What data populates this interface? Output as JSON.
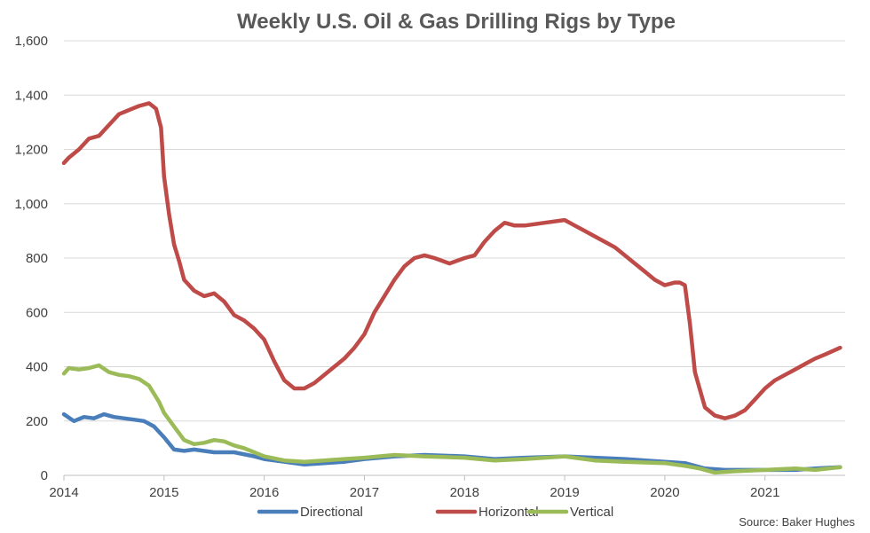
{
  "chart_data": {
    "type": "line",
    "title": "Weekly U.S. Oil & Gas Drilling Rigs by Type",
    "source": "Source: Baker Hughes",
    "xlabel": "",
    "ylabel": "",
    "xlim": [
      2014,
      2021.8
    ],
    "ylim": [
      0,
      1600
    ],
    "y_ticks": [
      0,
      200,
      400,
      600,
      800,
      1000,
      1200,
      1400,
      1600
    ],
    "y_tick_labels": [
      "0",
      "200",
      "400",
      "600",
      "800",
      "1,000",
      "1,200",
      "1,400",
      "1,600"
    ],
    "x_ticks": [
      2014,
      2015,
      2016,
      2017,
      2018,
      2019,
      2020,
      2021
    ],
    "x_tick_labels": [
      "2014",
      "2015",
      "2016",
      "2017",
      "2018",
      "2019",
      "2020",
      "2021"
    ],
    "grid": "horizontal",
    "legend_position": "bottom",
    "series": [
      {
        "name": "Directional",
        "color": "#4A7EBB",
        "x": [
          2014.0,
          2014.1,
          2014.2,
          2014.3,
          2014.4,
          2014.5,
          2014.6,
          2014.7,
          2014.8,
          2014.9,
          2015.0,
          2015.1,
          2015.2,
          2015.3,
          2015.5,
          2015.7,
          2015.9,
          2016.0,
          2016.2,
          2016.4,
          2016.6,
          2016.8,
          2017.0,
          2017.3,
          2017.6,
          2018.0,
          2018.3,
          2018.6,
          2019.0,
          2019.3,
          2019.6,
          2020.0,
          2020.2,
          2020.4,
          2020.6,
          2020.8,
          2021.0,
          2021.3,
          2021.5,
          2021.75
        ],
        "values": [
          225,
          200,
          215,
          210,
          225,
          215,
          210,
          205,
          200,
          180,
          140,
          95,
          90,
          95,
          85,
          85,
          70,
          60,
          50,
          40,
          45,
          50,
          60,
          70,
          75,
          70,
          60,
          65,
          70,
          65,
          60,
          50,
          45,
          25,
          20,
          20,
          20,
          20,
          25,
          30
        ]
      },
      {
        "name": "Horizontal",
        "color": "#BE4B48",
        "x": [
          2014.0,
          2014.05,
          2014.15,
          2014.25,
          2014.35,
          2014.45,
          2014.55,
          2014.65,
          2014.75,
          2014.85,
          2014.92,
          2014.97,
          2015.0,
          2015.05,
          2015.1,
          2015.15,
          2015.2,
          2015.3,
          2015.4,
          2015.5,
          2015.6,
          2015.7,
          2015.8,
          2015.9,
          2016.0,
          2016.1,
          2016.2,
          2016.3,
          2016.4,
          2016.5,
          2016.6,
          2016.7,
          2016.8,
          2016.9,
          2017.0,
          2017.1,
          2017.2,
          2017.3,
          2017.4,
          2017.5,
          2017.6,
          2017.7,
          2017.85,
          2018.0,
          2018.1,
          2018.2,
          2018.3,
          2018.4,
          2018.5,
          2018.6,
          2018.8,
          2019.0,
          2019.1,
          2019.2,
          2019.3,
          2019.4,
          2019.5,
          2019.6,
          2019.7,
          2019.8,
          2019.9,
          2020.0,
          2020.1,
          2020.15,
          2020.2,
          2020.25,
          2020.3,
          2020.4,
          2020.5,
          2020.6,
          2020.65,
          2020.7,
          2020.8,
          2020.9,
          2021.0,
          2021.1,
          2021.2,
          2021.3,
          2021.4,
          2021.5,
          2021.6,
          2021.75
        ],
        "values": [
          1150,
          1170,
          1200,
          1240,
          1250,
          1290,
          1330,
          1345,
          1360,
          1370,
          1350,
          1280,
          1100,
          960,
          850,
          790,
          720,
          680,
          660,
          670,
          640,
          590,
          570,
          540,
          500,
          420,
          350,
          320,
          320,
          340,
          370,
          400,
          430,
          470,
          520,
          600,
          660,
          720,
          770,
          800,
          810,
          800,
          780,
          800,
          810,
          860,
          900,
          930,
          920,
          920,
          930,
          940,
          920,
          900,
          880,
          860,
          840,
          810,
          780,
          750,
          720,
          700,
          710,
          710,
          700,
          560,
          380,
          250,
          220,
          210,
          215,
          220,
          240,
          280,
          320,
          350,
          370,
          390,
          410,
          430,
          445,
          470
        ]
      },
      {
        "name": "Vertical",
        "color": "#9BBB59",
        "x": [
          2014.0,
          2014.05,
          2014.15,
          2014.25,
          2014.35,
          2014.45,
          2014.55,
          2014.65,
          2014.75,
          2014.85,
          2014.95,
          2015.0,
          2015.1,
          2015.2,
          2015.3,
          2015.4,
          2015.5,
          2015.6,
          2015.7,
          2015.8,
          2015.9,
          2016.0,
          2016.2,
          2016.4,
          2016.6,
          2016.8,
          2017.0,
          2017.3,
          2017.6,
          2018.0,
          2018.3,
          2018.6,
          2019.0,
          2019.3,
          2019.6,
          2020.0,
          2020.2,
          2020.35,
          2020.5,
          2020.7,
          2021.0,
          2021.3,
          2021.5,
          2021.75
        ],
        "values": [
          375,
          395,
          390,
          395,
          405,
          380,
          370,
          365,
          355,
          330,
          270,
          230,
          180,
          130,
          115,
          120,
          130,
          125,
          110,
          100,
          85,
          70,
          55,
          50,
          55,
          60,
          65,
          75,
          70,
          65,
          55,
          60,
          70,
          55,
          50,
          45,
          35,
          25,
          10,
          15,
          20,
          25,
          20,
          30
        ]
      }
    ]
  }
}
